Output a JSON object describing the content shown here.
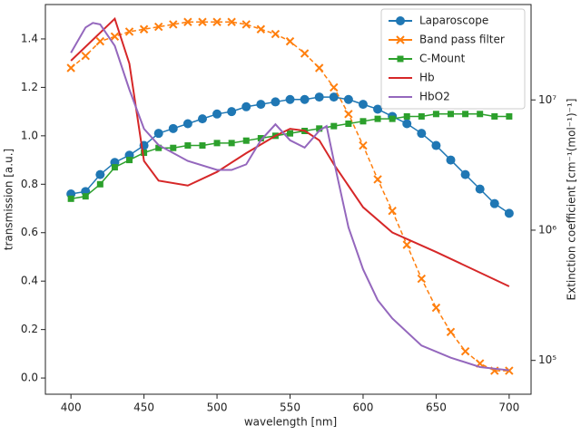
{
  "chart_data": {
    "type": "line",
    "x_label": "wavelength [nm]",
    "y_label": "transmission [a.u.]",
    "y2_label": "Extinction coefficient [cm⁻¹(mol⁻¹)⁻¹]",
    "x": [
      400,
      410,
      420,
      430,
      440,
      450,
      460,
      470,
      480,
      490,
      500,
      510,
      520,
      530,
      540,
      550,
      560,
      570,
      580,
      590,
      600,
      610,
      620,
      630,
      640,
      650,
      660,
      670,
      680,
      690,
      700
    ],
    "xlim": [
      382.5,
      715
    ],
    "xticks": [
      400,
      450,
      500,
      550,
      600,
      650,
      700
    ],
    "ylim": [
      -0.067,
      1.542
    ],
    "yticks": [
      {
        "value": 0,
        "label": "0.0"
      },
      0.2,
      0.4,
      0.6,
      0.8,
      {
        "value": 1,
        "label": "1.0"
      },
      1.2,
      1.4
    ],
    "y2lim": [
      55000,
      54000000
    ],
    "y2scale": "log",
    "y2ticks": [
      {
        "value": 100000,
        "label": "10⁵"
      },
      {
        "value": 1000000,
        "label": "10⁶"
      },
      {
        "value": 10000000,
        "label": "10⁷"
      }
    ],
    "legend": "upper right",
    "series": [
      {
        "name": "Laparoscope",
        "color": "#1f77b4",
        "marker": "o",
        "values": [
          0.76,
          0.77,
          0.84,
          0.89,
          0.92,
          0.96,
          1.01,
          1.03,
          1.05,
          1.07,
          1.09,
          1.1,
          1.12,
          1.13,
          1.14,
          1.15,
          1.15,
          1.16,
          1.16,
          1.15,
          1.13,
          1.11,
          1.08,
          1.05,
          1.01,
          0.96,
          0.9,
          0.84,
          0.78,
          0.72,
          0.68
        ]
      },
      {
        "name": "Band pass filter",
        "color": "#ff7f0e",
        "marker": "x",
        "values": [
          1.28,
          1.33,
          1.39,
          1.41,
          1.43,
          1.44,
          1.45,
          1.46,
          1.47,
          1.47,
          1.47,
          1.47,
          1.46,
          1.44,
          1.42,
          1.39,
          1.34,
          1.28,
          1.2,
          1.09,
          0.96,
          0.82,
          0.69,
          0.55,
          0.41,
          0.29,
          0.19,
          0.11,
          0.06,
          0.03,
          0.03
        ]
      },
      {
        "name": "C-Mount",
        "color": "#2ca02c",
        "marker": "s",
        "values": [
          0.74,
          0.75,
          0.8,
          0.87,
          0.9,
          0.93,
          0.95,
          0.95,
          0.96,
          0.96,
          0.97,
          0.97,
          0.98,
          0.99,
          1.0,
          1.01,
          1.02,
          1.03,
          1.04,
          1.05,
          1.06,
          1.07,
          1.07,
          1.08,
          1.08,
          1.09,
          1.09,
          1.09,
          1.09,
          1.08,
          1.08
        ]
      },
      {
        "name": "Hb",
        "color": "#d62728",
        "axis": "y2",
        "x": [
          400,
          430,
          440,
          450,
          460,
          480,
          500,
          520,
          540,
          550,
          560,
          570,
          580,
          600,
          620,
          650,
          700
        ],
        "values": [
          20000000,
          42000000,
          19000000,
          3400000,
          2400000,
          2200000,
          2800000,
          3900000,
          5300000,
          6000000,
          5800000,
          4900000,
          3200000,
          1500000,
          960000,
          680000,
          370000
        ]
      },
      {
        "name": "HbO2",
        "color": "#9467bd",
        "axis": "y2",
        "x": [
          400,
          410,
          415,
          420,
          430,
          440,
          450,
          460,
          480,
          500,
          510,
          520,
          530,
          540,
          550,
          560,
          570,
          575,
          580,
          590,
          600,
          610,
          620,
          640,
          660,
          680,
          700
        ],
        "values": [
          23000000,
          36000000,
          39000000,
          38000000,
          26000000,
          12000000,
          6000000,
          4500000,
          3400000,
          2900000,
          2900000,
          3200000,
          4900000,
          6500000,
          4900000,
          4300000,
          5800000,
          6300000,
          3400000,
          1050000,
          500000,
          290000,
          210000,
          130000,
          105000,
          89000,
          84000
        ]
      }
    ]
  }
}
